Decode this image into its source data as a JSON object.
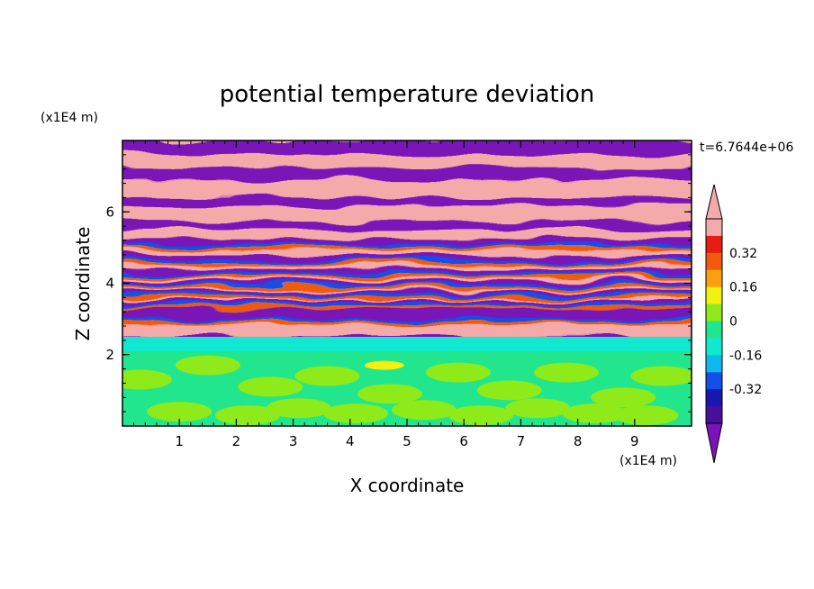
{
  "chart_data": {
    "type": "heatmap",
    "title": "potential temperature deviation",
    "xlabel": "X coordinate",
    "ylabel": "Z coordinate",
    "x_unit": "(x1E4 m)",
    "y_unit": "(x1E4 m)",
    "time_label": "t=6.7644e+06",
    "xlim": [
      0,
      10
    ],
    "ylim": [
      0,
      8
    ],
    "x_ticks": [
      "1",
      "2",
      "3",
      "4",
      "5",
      "6",
      "7",
      "8",
      "9"
    ],
    "y_ticks": [
      "2",
      "4",
      "6"
    ],
    "colorbar": {
      "levels": [
        -0.48,
        -0.4,
        -0.32,
        -0.24,
        -0.16,
        -0.08,
        0,
        0.08,
        0.16,
        0.24,
        0.32,
        0.4,
        0.48
      ],
      "labels": [
        "0.32",
        "0.16",
        "0",
        "-0.16",
        "-0.32"
      ],
      "under_color": "#7a14b8",
      "over_color": "#f4aaa8",
      "colors": [
        "#46109c",
        "#1818b0",
        "#1450e8",
        "#10b8f0",
        "#10e8d0",
        "#22e68e",
        "#8eea18",
        "#f2f210",
        "#f8a010",
        "#f05a0c",
        "#e81c10",
        "#f4aaa8"
      ]
    },
    "regions": {
      "lower_layer": {
        "z_range": [
          0,
          2.0
        ],
        "value": "~0.0 to 0.08"
      },
      "transition_layer": {
        "z_range": [
          2.0,
          2.2
        ],
        "value": "~ -0.08"
      },
      "banded_layer": {
        "z_range": [
          2.2,
          8.0
        ],
        "value": "alternating ~ -0.48 / ~ +0.48"
      }
    },
    "grid": false
  }
}
